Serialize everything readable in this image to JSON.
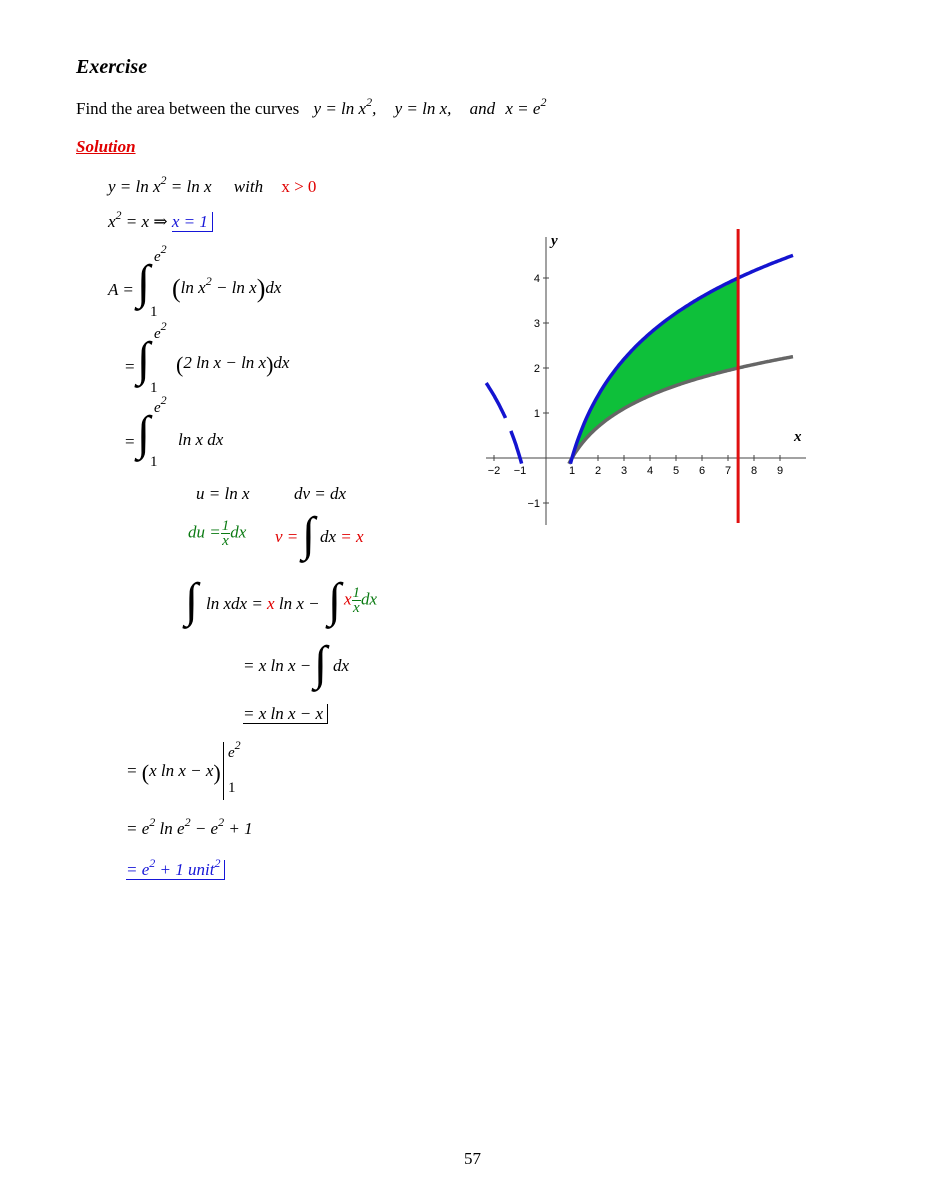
{
  "exercise_heading": "Exercise",
  "problem": {
    "prefix": "Find the area between the curves",
    "curve1_lhs": "y = ln x",
    "curve1_exp": "2",
    "curve1_sep": ",",
    "curve2": "y = ln x,",
    "conj": "and",
    "curve3_lhs": "x = e",
    "curve3_exp": "2"
  },
  "solution_heading": "Solution",
  "lines": {
    "l1_a": "y = ln x",
    "l1_exp": "2",
    "l1_b": " = ln x",
    "l1_with": "with",
    "l1_cond": "x > 0",
    "l2_a": "x",
    "l2_exp": "2",
    "l2_b": " = x ⇒ ",
    "l2_res": "x = 1",
    "l3_lhs": "A =",
    "l3_upper": "e",
    "l3_upper_exp": "2",
    "l3_lower": "1",
    "l3_body_a": "ln x",
    "l3_body_exp": "2",
    "l3_body_b": " − ln x",
    "l3_dx": "dx",
    "l4_eq": "=",
    "l4_upper": "e",
    "l4_upper_exp": "2",
    "l4_lower": "1",
    "l4_body": "2 ln x − ln x",
    "l4_dx": "dx",
    "l5_eq": "=",
    "l5_upper": "e",
    "l5_upper_exp": "2",
    "l5_lower": "1",
    "l5_body": "ln x dx",
    "u": "u = ln x",
    "dv": "dv = dx",
    "du_a": "du =",
    "du_num": "1",
    "du_den": "x",
    "du_b": "dx",
    "v_a": "v =",
    "v_dx": "dx",
    "v_res": "= x",
    "ibp_a": "ln xdx = ",
    "ibp_x": "x",
    "ibp_b": " ln x − ",
    "ibp_x2": "x",
    "ibp_num": "1",
    "ibp_den": "x",
    "ibp_dx": "dx",
    "ibp2_a": "= x ln x −",
    "ibp2_dx": "dx",
    "ibp3": "= x ln x − x",
    "eval_a": "= ",
    "eval_body": "x ln x − x",
    "eval_upper": "e",
    "eval_upper_exp": "2",
    "eval_lower": "1",
    "r1_a": "= e",
    "r1_exp1": "2",
    "r1_b": " ln e",
    "r1_exp2": "2",
    "r1_c": " − e",
    "r1_exp3": "2",
    "r1_d": " + 1",
    "r2_a": "= e",
    "r2_exp1": "2",
    "r2_b": " + 1  ",
    "r2_unit": "unit",
    "r2_exp2": "2"
  },
  "graph": {
    "x_axis_label": "x",
    "y_axis_label": "y",
    "x_ticks": [
      "−2",
      "−1",
      "1",
      "2",
      "3",
      "4",
      "5",
      "6",
      "7",
      "8",
      "9"
    ],
    "y_ticks": [
      "4",
      "3",
      "2",
      "1",
      "−1"
    ],
    "colors": {
      "upper_curve": "#1414d0",
      "lower_curve": "#666666",
      "fill": "#0ec03a",
      "vertical_line": "#e01010"
    }
  },
  "page_number": "57"
}
